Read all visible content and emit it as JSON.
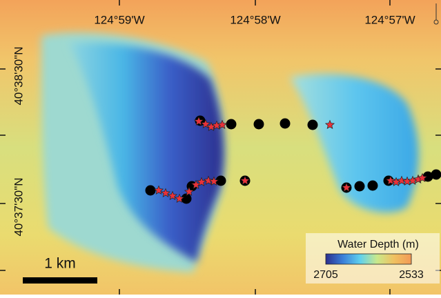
{
  "map": {
    "longitude_labels": [
      "124°59'W",
      "124°58'W",
      "124°57'W"
    ],
    "latitude_labels": [
      "40°38'30\"N",
      "40°37'30\"N"
    ],
    "scale_bar": "1 km",
    "legend": {
      "title": "Water Depth (m)",
      "min_label": 2705,
      "max_label": 2533
    }
  }
}
